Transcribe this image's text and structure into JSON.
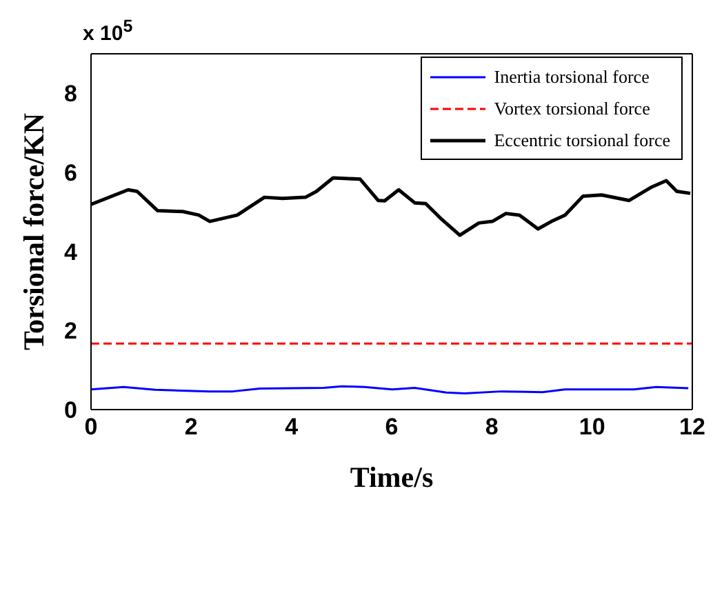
{
  "chart_data": {
    "type": "line",
    "xlabel": "Time/s",
    "ylabel": "Torsional force/KN",
    "annotations": [
      "x 10$^{5}$"
    ],
    "xlim": [
      0,
      12
    ],
    "xticks": [
      0,
      2,
      4,
      6,
      8,
      10,
      12
    ],
    "ylim": [
      0,
      9
    ],
    "yticks": [
      0,
      2,
      4,
      6,
      8
    ],
    "legend": "top right",
    "marker": "none",
    "series": [
      {
        "name": "Inertia torsional force",
        "color": "#0000ff",
        "line_style": "solid",
        "x": [
          0,
          0.65,
          1.28,
          2.37,
          2.83,
          3.37,
          4.64,
          5.01,
          5.46,
          6.01,
          6.46,
          7.09,
          7.46,
          8.19,
          9.01,
          9.46,
          10.83,
          11.28,
          11.92
        ],
        "values": [
          0.51,
          0.57,
          0.5,
          0.46,
          0.46,
          0.53,
          0.55,
          0.59,
          0.57,
          0.51,
          0.55,
          0.43,
          0.41,
          0.46,
          0.44,
          0.51,
          0.51,
          0.57,
          0.54
        ]
      },
      {
        "name": "Vortex torsional force",
        "color": "#ff0000",
        "line_style": "dashed",
        "x": [
          0,
          12
        ],
        "values": [
          1.67,
          1.67
        ]
      },
      {
        "name": "Eccentric torsional force",
        "color": "#000000",
        "line_style": "solid",
        "x": [
          0,
          0.74,
          0.92,
          1.33,
          1.83,
          2.15,
          2.37,
          2.92,
          3.46,
          3.82,
          4.28,
          4.5,
          4.83,
          5.37,
          5.73,
          5.86,
          6.14,
          6.46,
          6.68,
          7.0,
          7.36,
          7.74,
          8.01,
          8.28,
          8.55,
          8.92,
          9.19,
          9.46,
          9.82,
          10.19,
          10.74,
          11.19,
          11.48,
          11.69,
          11.96
        ],
        "values": [
          5.19,
          5.56,
          5.52,
          5.03,
          5.01,
          4.92,
          4.76,
          4.92,
          5.37,
          5.34,
          5.37,
          5.52,
          5.86,
          5.83,
          5.29,
          5.28,
          5.56,
          5.23,
          5.21,
          4.81,
          4.41,
          4.72,
          4.76,
          4.96,
          4.92,
          4.57,
          4.76,
          4.92,
          5.4,
          5.43,
          5.29,
          5.63,
          5.79,
          5.52,
          5.47
        ]
      }
    ]
  }
}
